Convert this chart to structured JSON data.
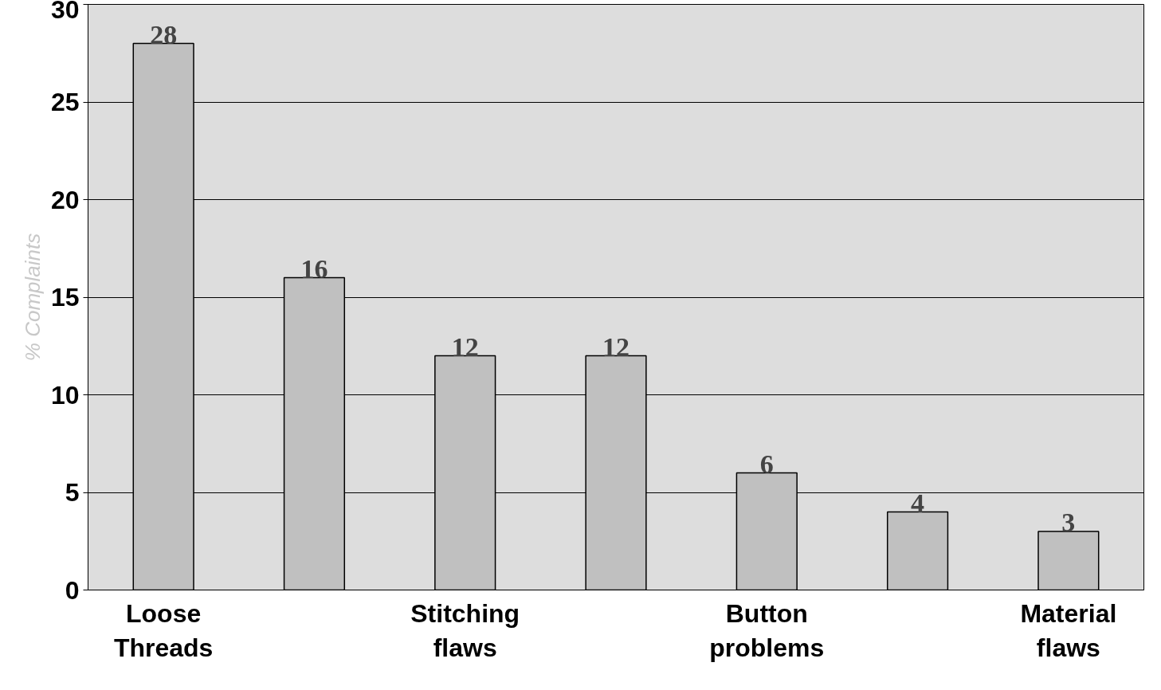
{
  "chart_data": {
    "type": "bar",
    "ylabel": "% Complaints",
    "categories": [
      "Loose Threads",
      null,
      "Stitching flaws",
      null,
      "Button problems",
      null,
      "Material flaws"
    ],
    "values": [
      28,
      16,
      12,
      12,
      6,
      4,
      3
    ],
    "color": "#c0c0c0",
    "ylim": [
      0,
      30
    ],
    "yticks": [
      0,
      5,
      10,
      15,
      20,
      25,
      30
    ],
    "grid": "y",
    "data_labels": true
  }
}
